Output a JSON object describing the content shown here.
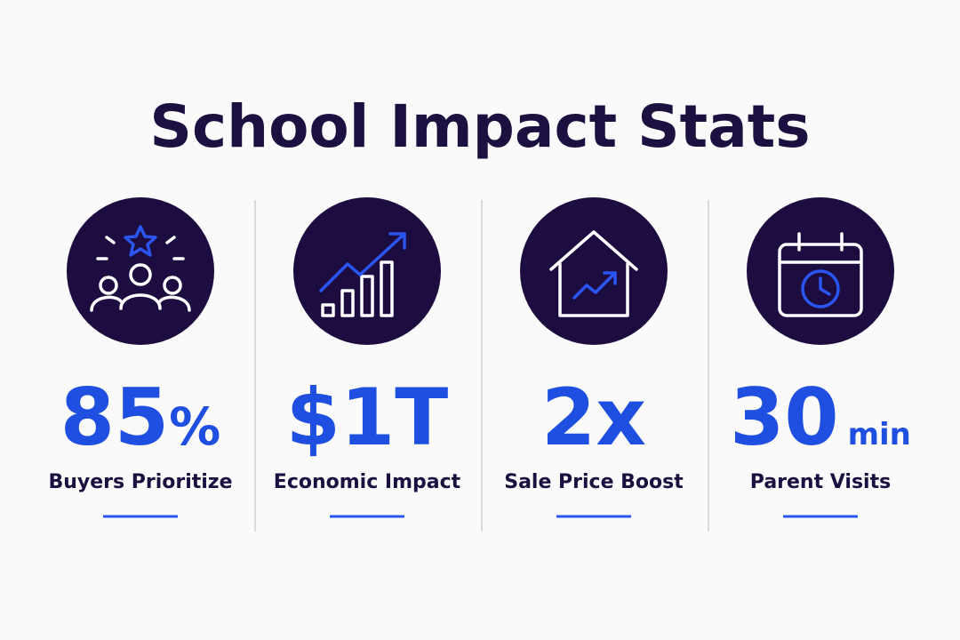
{
  "header": {
    "title": "School Impact Stats"
  },
  "stats": [
    {
      "value": "85",
      "unit": "%",
      "label": "Buyers Prioritize"
    },
    {
      "value": "$1T",
      "label": "Economic Impact"
    },
    {
      "value": "2x",
      "label": "Sale Price Boost"
    },
    {
      "value": "30",
      "unit": "min",
      "label": "Parent Visits"
    }
  ]
}
